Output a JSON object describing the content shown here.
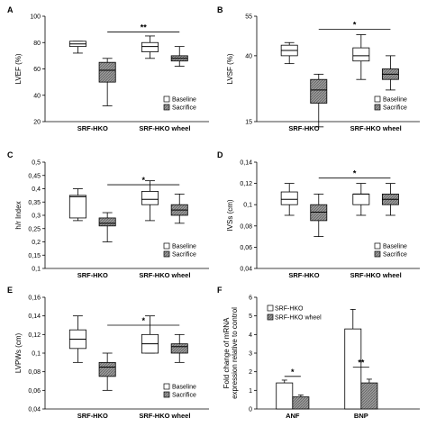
{
  "colors": {
    "baseline": "#ffffff",
    "sacrifice_hatch": "#9a9a9a",
    "stroke": "#000000"
  },
  "chart_data": [
    {
      "panel": "A",
      "type": "box",
      "ylabel": "LVEF (%)",
      "ylim": [
        20,
        100
      ],
      "yticks": [
        "20",
        "40",
        "60",
        "80",
        "100"
      ],
      "yvals": [
        20,
        40,
        60,
        80,
        100
      ],
      "groups": [
        "SRF-HKO",
        "SRF-HKO wheel"
      ],
      "legend": [
        "Baseline",
        "Sacrifice"
      ],
      "boxes": [
        {
          "group": 0,
          "series": "Baseline",
          "min": 72,
          "q1": 77,
          "median": 79,
          "q3": 81,
          "max": 81
        },
        {
          "group": 0,
          "series": "Sacrifice",
          "min": 32,
          "q1": 50,
          "median": 59,
          "q3": 65,
          "max": 68
        },
        {
          "group": 1,
          "series": "Baseline",
          "min": 68,
          "q1": 73,
          "median": 77,
          "q3": 80,
          "max": 85
        },
        {
          "group": 1,
          "series": "Sacrifice",
          "min": 62,
          "q1": 66,
          "median": 68,
          "q3": 70,
          "max": 77
        }
      ],
      "significance": {
        "label": "**",
        "from": 1,
        "to": 3,
        "y": 88
      }
    },
    {
      "panel": "B",
      "type": "box",
      "ylabel": "LVSF (%)",
      "ylim": [
        15,
        55
      ],
      "yticks": [
        "15",
        "40",
        "55"
      ],
      "yvals": [
        15,
        40,
        55
      ],
      "groups": [
        "SRF-HKO",
        "SRF-HKO wheel"
      ],
      "legend": [
        "Baseline",
        "Sacrifice"
      ],
      "boxes": [
        {
          "group": 0,
          "series": "Baseline",
          "min": 37,
          "q1": 40,
          "median": 42,
          "q3": 44,
          "max": 45
        },
        {
          "group": 0,
          "series": "Sacrifice",
          "min": 13,
          "q1": 22,
          "median": 27,
          "q3": 31,
          "max": 33
        },
        {
          "group": 1,
          "series": "Baseline",
          "min": 31,
          "q1": 38,
          "median": 40,
          "q3": 43,
          "max": 48
        },
        {
          "group": 1,
          "series": "Sacrifice",
          "min": 27,
          "q1": 31,
          "median": 33,
          "q3": 35,
          "max": 40
        }
      ],
      "significance": {
        "label": "*",
        "from": 1,
        "to": 3,
        "y": 50
      }
    },
    {
      "panel": "C",
      "type": "box",
      "ylabel": "h/r Index",
      "ylim": [
        0.1,
        0.5
      ],
      "yticks": [
        "0,1",
        "0,15",
        "0,2",
        "0,25",
        "0,3",
        "0,35",
        "0,4",
        "0,45",
        "0,5"
      ],
      "yvals": [
        0.1,
        0.15,
        0.2,
        0.25,
        0.3,
        0.35,
        0.4,
        0.45,
        0.5
      ],
      "groups": [
        "SRF-HKO",
        "SRF-HKO wheel"
      ],
      "legend": [
        "Baseline",
        "Sacrifice"
      ],
      "boxes": [
        {
          "group": 0,
          "series": "Baseline",
          "min": 0.28,
          "q1": 0.29,
          "median": 0.37,
          "q3": 0.375,
          "max": 0.4
        },
        {
          "group": 0,
          "series": "Sacrifice",
          "min": 0.2,
          "q1": 0.26,
          "median": 0.27,
          "q3": 0.29,
          "max": 0.31
        },
        {
          "group": 1,
          "series": "Baseline",
          "min": 0.28,
          "q1": 0.34,
          "median": 0.36,
          "q3": 0.39,
          "max": 0.43
        },
        {
          "group": 1,
          "series": "Sacrifice",
          "min": 0.27,
          "q1": 0.3,
          "median": 0.32,
          "q3": 0.34,
          "max": 0.38
        }
      ],
      "significance": {
        "label": "*",
        "from": 1,
        "to": 3,
        "y": 0.415
      }
    },
    {
      "panel": "D",
      "type": "box",
      "ylabel": "IVSs (cm)",
      "ylim": [
        0.04,
        0.14
      ],
      "yticks": [
        "0,04",
        "0,06",
        "0,08",
        "0,1",
        "0,12",
        "0,14"
      ],
      "yvals": [
        0.04,
        0.06,
        0.08,
        0.1,
        0.12,
        0.14
      ],
      "groups": [
        "SRF-HKO",
        "SRF-HKO wheel"
      ],
      "legend": [
        "Baseline",
        "Sacrifice"
      ],
      "boxes": [
        {
          "group": 0,
          "series": "Baseline",
          "min": 0.09,
          "q1": 0.1,
          "median": 0.105,
          "q3": 0.112,
          "max": 0.12
        },
        {
          "group": 0,
          "series": "Sacrifice",
          "min": 0.07,
          "q1": 0.085,
          "median": 0.093,
          "q3": 0.1,
          "max": 0.11
        },
        {
          "group": 1,
          "series": "Baseline",
          "min": 0.09,
          "q1": 0.1,
          "median": 0.11,
          "q3": 0.11,
          "max": 0.12
        },
        {
          "group": 1,
          "series": "Sacrifice",
          "min": 0.09,
          "q1": 0.1,
          "median": 0.105,
          "q3": 0.11,
          "max": 0.12
        }
      ],
      "significance": {
        "label": "*",
        "from": 1,
        "to": 3,
        "y": 0.125
      }
    },
    {
      "panel": "E",
      "type": "box",
      "ylabel": "LVPWs (cm)",
      "ylim": [
        0.04,
        0.16
      ],
      "yticks": [
        "0,04",
        "0,06",
        "0,08",
        "0,1",
        "0,12",
        "0,14",
        "0,16"
      ],
      "yvals": [
        0.04,
        0.06,
        0.08,
        0.1,
        0.12,
        0.14,
        0.16
      ],
      "groups": [
        "SRF-HKO",
        "SRF-HKO wheel"
      ],
      "legend": [
        "Baseline",
        "Sacrifice"
      ],
      "boxes": [
        {
          "group": 0,
          "series": "Baseline",
          "min": 0.09,
          "q1": 0.105,
          "median": 0.115,
          "q3": 0.125,
          "max": 0.14
        },
        {
          "group": 0,
          "series": "Sacrifice",
          "min": 0.06,
          "q1": 0.075,
          "median": 0.085,
          "q3": 0.09,
          "max": 0.1
        },
        {
          "group": 1,
          "series": "Baseline",
          "min": 0.1,
          "q1": 0.1,
          "median": 0.11,
          "q3": 0.12,
          "max": 0.14
        },
        {
          "group": 1,
          "series": "Sacrifice",
          "min": 0.09,
          "q1": 0.1,
          "median": 0.107,
          "q3": 0.11,
          "max": 0.12
        }
      ],
      "significance": {
        "label": "*",
        "from": 1,
        "to": 3,
        "y": 0.13
      }
    },
    {
      "panel": "F",
      "type": "bar",
      "ylabel": "Fold change of mRNA expression relative to control",
      "ylim": [
        0,
        6
      ],
      "yticks": [
        "0",
        "1",
        "2",
        "3",
        "4",
        "5",
        "6"
      ],
      "yvals": [
        0,
        1,
        2,
        3,
        4,
        5,
        6
      ],
      "categories": [
        "ANF",
        "BNP"
      ],
      "series": [
        {
          "name": "SRF-HKO",
          "values": [
            1.4,
            4.3
          ],
          "errors": [
            0.15,
            1.05
          ]
        },
        {
          "name": "SRF-HKO wheel",
          "values": [
            0.65,
            1.4
          ],
          "errors": [
            0.1,
            0.2
          ]
        }
      ],
      "significance": [
        {
          "label": "*",
          "category": 0
        },
        {
          "label": "**",
          "category": 1
        }
      ]
    }
  ]
}
